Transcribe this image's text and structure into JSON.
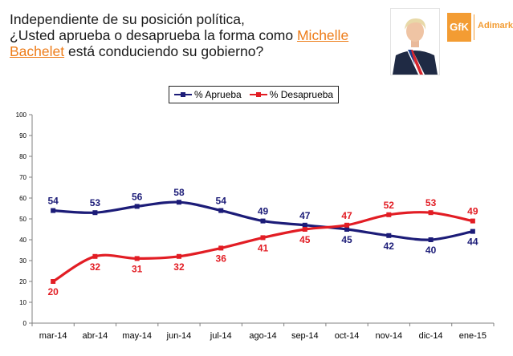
{
  "title": {
    "line1": "Independiente de su posición política,",
    "line2_before": "¿Usted aprueba o desaprueba la forma como ",
    "line2_highlight": "Michelle",
    "line3_highlight": "Bachelet",
    "line3_after": " está conduciendo su gobierno?"
  },
  "brand": {
    "mark": "GfK",
    "name": "Adimark"
  },
  "colors": {
    "aprueba": "#1c1c78",
    "desaprueba": "#e21d24",
    "accent": "#ee7d1a"
  },
  "chart_data": {
    "type": "line",
    "categories": [
      "mar-14",
      "abr-14",
      "may-14",
      "jun-14",
      "jul-14",
      "ago-14",
      "sep-14",
      "oct-14",
      "nov-14",
      "dic-14",
      "ene-15"
    ],
    "series": [
      {
        "name": "% Aprueba",
        "color": "#1c1c78",
        "values": [
          54,
          53,
          56,
          58,
          54,
          49,
          47,
          45,
          42,
          40,
          44
        ]
      },
      {
        "name": "% Desaprueba",
        "color": "#e21d24",
        "values": [
          20,
          32,
          31,
          32,
          36,
          41,
          45,
          47,
          52,
          53,
          49
        ]
      }
    ],
    "ylim": [
      0,
      100
    ],
    "yticks": [
      0,
      10,
      20,
      30,
      40,
      50,
      60,
      70,
      80,
      90,
      100
    ],
    "grid": false,
    "legend_position": "top-center"
  }
}
